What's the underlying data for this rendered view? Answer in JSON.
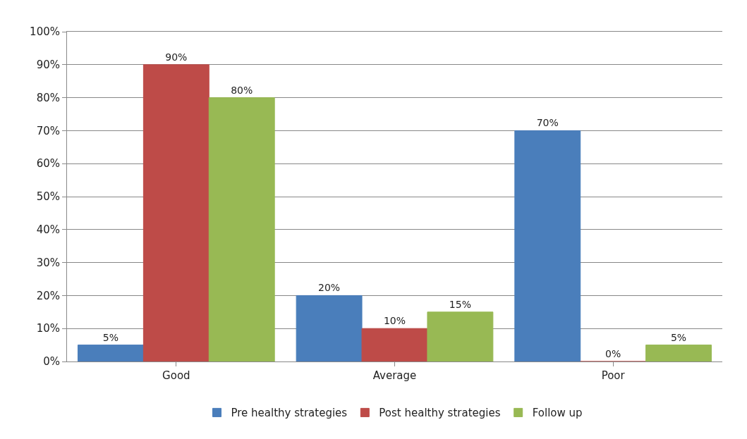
{
  "chart_data": {
    "type": "bar",
    "categories": [
      "Good",
      "Average",
      "Poor"
    ],
    "series": [
      {
        "name": "Pre healthy strategies",
        "color": "#4a7ebb",
        "values": [
          5,
          20,
          70
        ],
        "value_labels": [
          "5%",
          "20%",
          "70%"
        ]
      },
      {
        "name": "Post healthy strategies",
        "color": "#be4b48",
        "values": [
          90,
          10,
          0
        ],
        "value_labels": [
          "90%",
          "10%",
          "0%"
        ]
      },
      {
        "name": "Follow up",
        "color": "#98b954",
        "values": [
          80,
          15,
          5
        ],
        "value_labels": [
          "80%",
          "15%",
          "5%"
        ]
      }
    ],
    "ylim": [
      0,
      100
    ],
    "yticks": [
      {
        "value": 0,
        "label": "0%"
      },
      {
        "value": 10,
        "label": "10%"
      },
      {
        "value": 20,
        "label": "20%"
      },
      {
        "value": 30,
        "label": "30%"
      },
      {
        "value": 40,
        "label": "40%"
      },
      {
        "value": 50,
        "label": "50%"
      },
      {
        "value": 60,
        "label": "60%"
      },
      {
        "value": 70,
        "label": "70%"
      },
      {
        "value": 80,
        "label": "80%"
      },
      {
        "value": 90,
        "label": "90%"
      },
      {
        "value": 100,
        "label": "100%"
      }
    ],
    "grid": "y",
    "legend": "bottom"
  }
}
